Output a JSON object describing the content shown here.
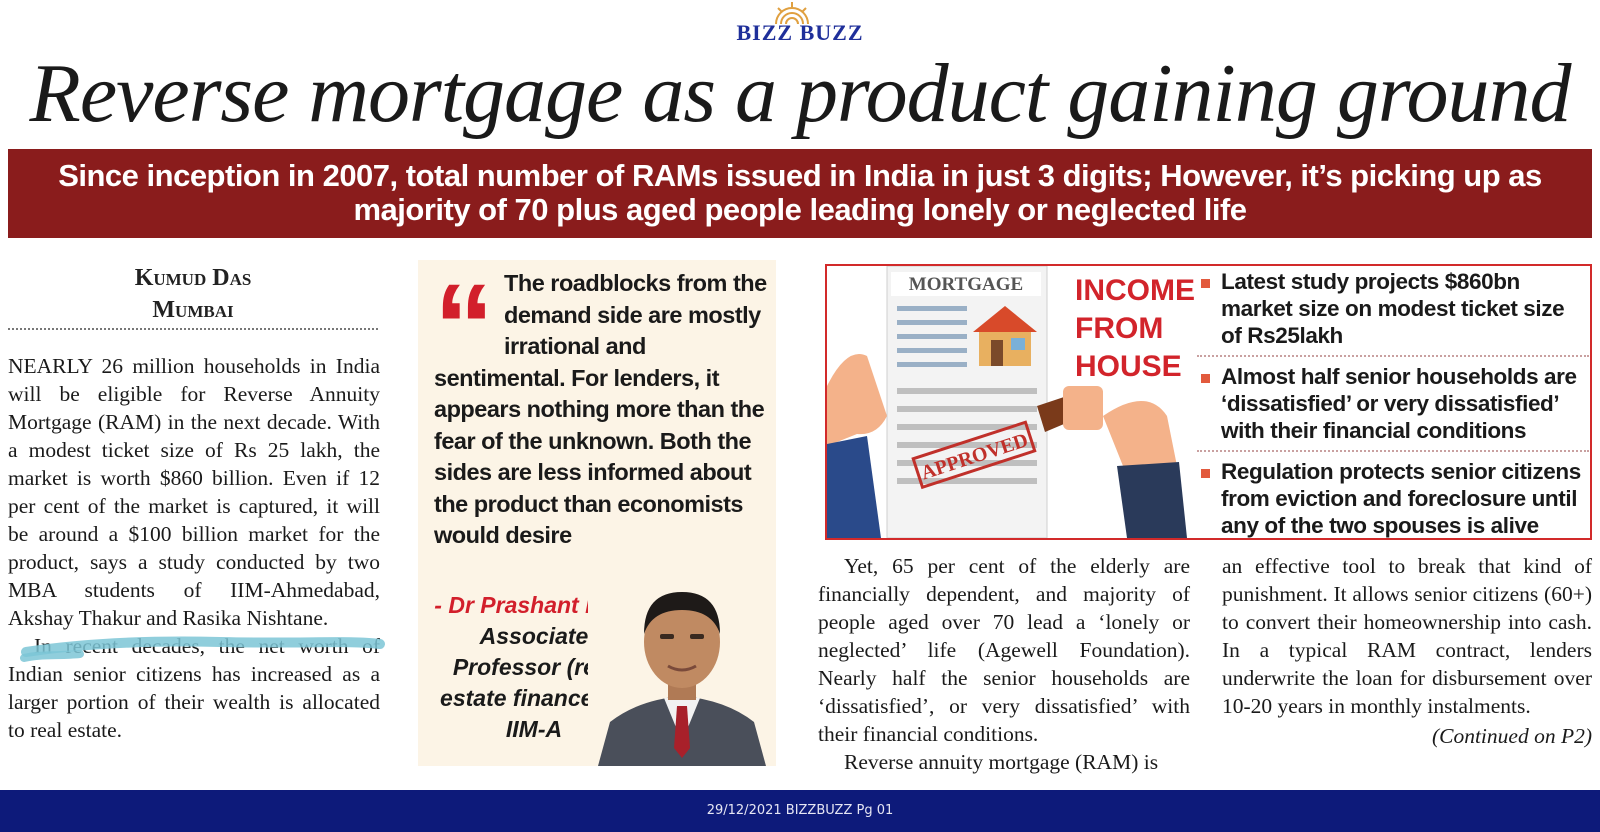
{
  "masthead": {
    "brand": "BIZZ BUZZ",
    "accent": "#1f2f9a"
  },
  "headline": "Reverse mortgage as a product gaining ground",
  "banner": {
    "line1": "Since inception in 2007, total number of RAMs issued in India in just 3 digits; However, it’s picking up as",
    "line2": "majority of 70 plus aged people leading lonely or neglected life",
    "color": "#8a1c1c"
  },
  "byline": {
    "author": "Kumud Das",
    "location": "Mumbai"
  },
  "column1": {
    "p1": "NEARLY 26 million households in India will be eligible for Reverse Annuity Mortgage (RAM) in the next decade. With a modest ticket size of Rs 25 lakh, the market is worth $860 billion. Even if 12 per cent of the market is captured, it will be around a $100 billion market for the product, says a study conducted by two MBA students of IIM-Ahmedabad, Akshay Thakur and Rasika Nishtane.",
    "p2": "In recent decades, the net worth of Indian senior citizens has increased as a larger portion of their wealth is allocated to real estate."
  },
  "quote": {
    "mark": "“",
    "text": "The roadblocks from the demand side are mostly irrational and sentimental. For lenders, it appears nothing more than the fear of the unknown. Both the sides are less informed about the product than economists would desire",
    "attribution_name": "- Dr Prashant Das,",
    "attribution_title": "Associate Professor (real estate finance) at IIM-A",
    "accent": "#d21f2b"
  },
  "infobox": {
    "mortgage_label": "MORTGAGE",
    "stamp": "APPROVED",
    "heading": [
      "INCOME",
      "FROM",
      "HOUSE"
    ],
    "bullets": [
      "Latest study projects $860bn market size on modest ticket size of Rs25lakh",
      "Almost half senior households are ‘dissatisfied’ or very dissatisfied’ with their financial conditions",
      "Regulation protects senior citizens from eviction and foreclosure until any of the two spouses is alive"
    ]
  },
  "column3": {
    "p1": "Yet, 65 per cent of the elderly are financially dependent, and majority of people aged over 70 lead a ‘lonely or neglected’ life (Agewell Foundation). Nearly half the senior households are ‘dissatisfied’, or very dissatisfied’ with their financial conditions.",
    "p2": "Reverse annuity mortgage (RAM) is"
  },
  "column4": {
    "p1": "an effective tool to break that kind of punishment. It allows senior citizens (60+) to convert their homeownership into cash. In a typical RAM contract, lenders underwrite the loan for disbursement over 10-20 years in monthly instalments.",
    "continued": "(Continued on P2)"
  },
  "footer": "29/12/2021 BIZZBUZZ Pg 01"
}
